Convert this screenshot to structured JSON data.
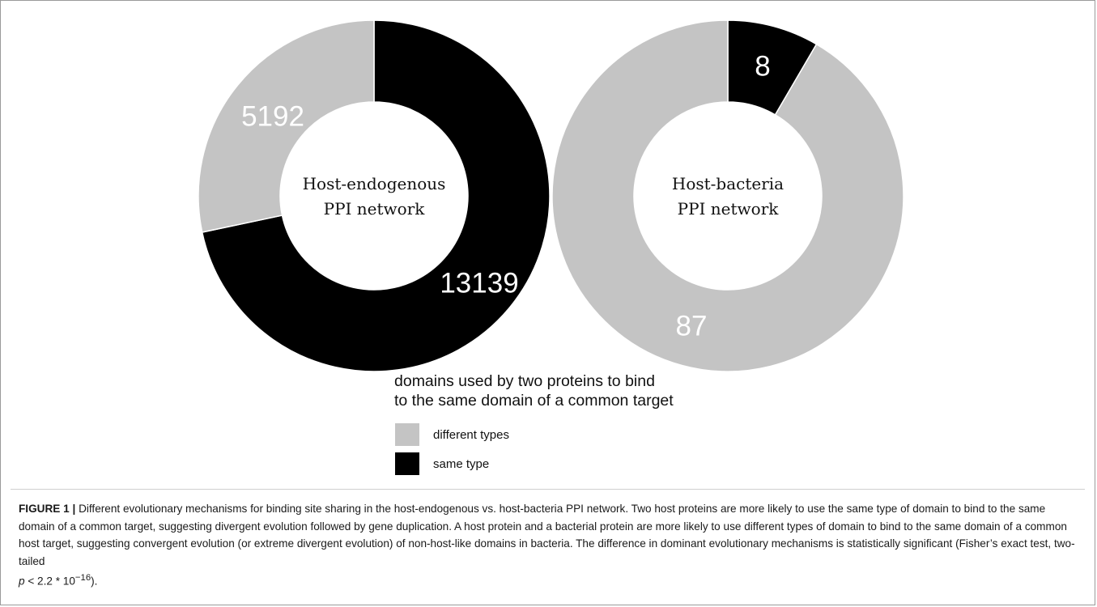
{
  "chart_data": [
    {
      "type": "pie",
      "style": "donut",
      "center_title_lines": [
        "Host-endogenous",
        "PPI network"
      ],
      "slices": [
        {
          "key": "same",
          "legend": "same type",
          "value": 13139,
          "label": "13139",
          "color": "#000000"
        },
        {
          "key": "different",
          "legend": "different types",
          "value": 5192,
          "label": "5192",
          "color": "#c4c4c4"
        }
      ]
    },
    {
      "type": "pie",
      "style": "donut",
      "center_title_lines": [
        "Host-bacteria",
        "PPI network"
      ],
      "slices": [
        {
          "key": "same",
          "legend": "same type",
          "value": 8,
          "label": "8",
          "color": "#000000"
        },
        {
          "key": "different",
          "legend": "different types",
          "value": 87,
          "label": "87",
          "color": "#c4c4c4"
        }
      ]
    }
  ],
  "legend": {
    "title_lines": [
      "domains used by two proteins to bind",
      "to the same domain of a common target"
    ],
    "items": [
      {
        "label": "different types",
        "color": "#c4c4c4"
      },
      {
        "label": "same type",
        "color": "#000000"
      }
    ]
  },
  "caption": {
    "label": "FIGURE 1 |",
    "text": "Different evolutionary mechanisms for binding site sharing in the host-endogenous vs. host-bacteria PPI network. Two host proteins are more likely to use the same type of domain to bind to the same domain of a common target, suggesting divergent evolution followed by gene duplication. A host protein and a bacterial protein are more likely to use different types of domain to bind to the same domain of a common host target, suggesting convergent evolution (or extreme divergent evolution) of non-host-like domains in bacteria. The difference in dominant evolutionary mechanisms is statistically significant (Fisher’s exact test, two-tailed",
    "p_symbol": "p",
    "p_expression": " < 2.2 * 10",
    "p_exponent": "−16",
    "p_end": ")."
  }
}
